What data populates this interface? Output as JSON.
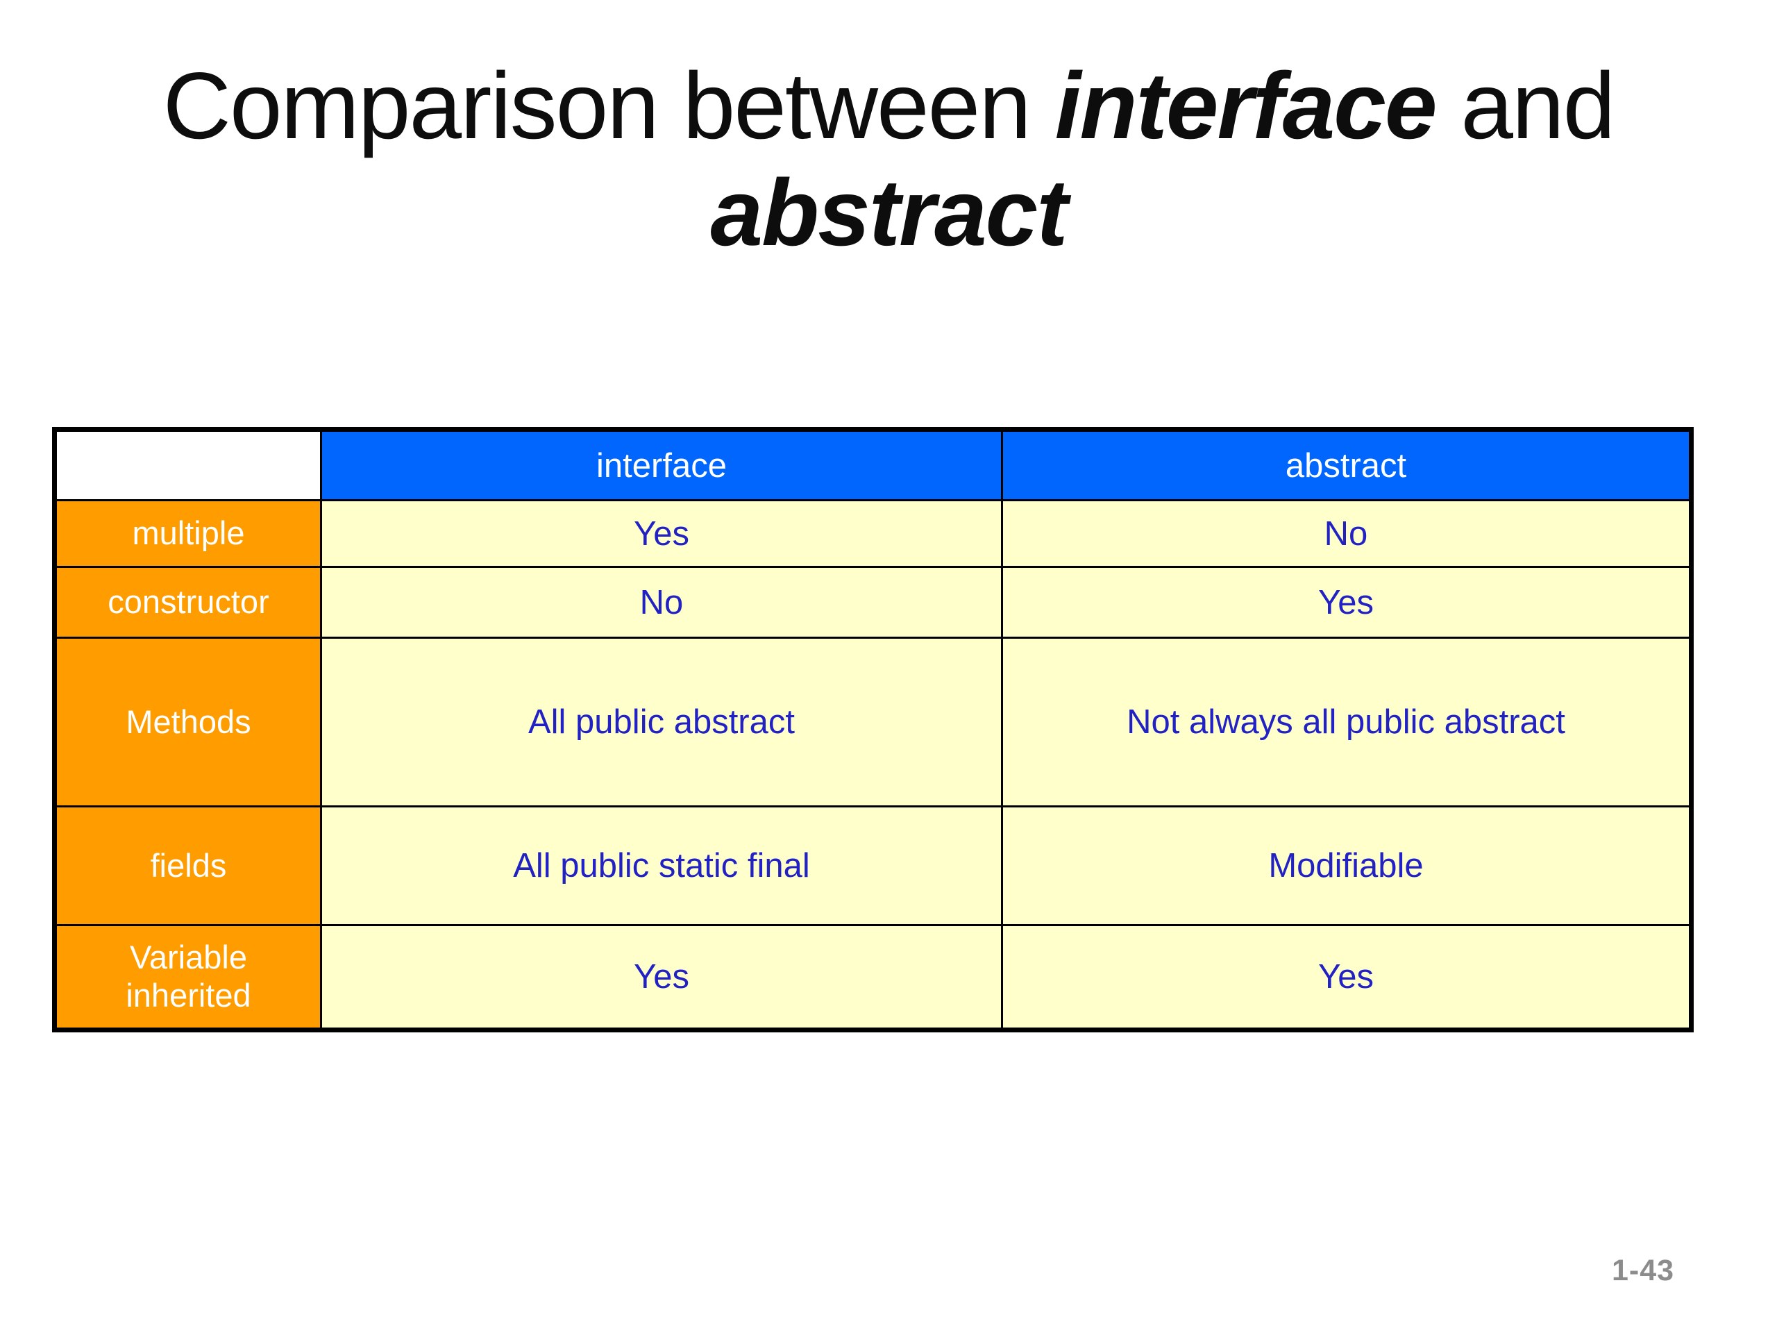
{
  "slide": {
    "page_number": "1-43"
  },
  "title": {
    "line1_prefix": "Comparison between ",
    "line1_emphasis": "interface",
    "line1_suffix": " and",
    "line2_emphasis": "abstract"
  },
  "table": {
    "corner": "",
    "columns": [
      "interface",
      "abstract"
    ],
    "rows": [
      {
        "label": "multiple",
        "interface": "Yes",
        "abstract": "No"
      },
      {
        "label": "constructor",
        "interface": "No",
        "abstract": "Yes"
      },
      {
        "label": "Methods",
        "interface": "All public abstract",
        "abstract": "Not always all public abstract"
      },
      {
        "label": "fields",
        "interface": "All public static final",
        "abstract": "Modifiable"
      },
      {
        "label": "Variable inherited",
        "interface": "Yes",
        "abstract": "Yes"
      }
    ]
  },
  "colors": {
    "column_header_bg": "#0066FE",
    "column_header_text": "#FFFFFF",
    "row_header_bg": "#FF9C00",
    "row_header_text": "#FFFFFF",
    "cell_bg": "#FFFFCC",
    "cell_text": "#2222C4",
    "border": "#000000",
    "title_text": "#0D0D0D",
    "page_number_text": "#8C8C8C"
  }
}
